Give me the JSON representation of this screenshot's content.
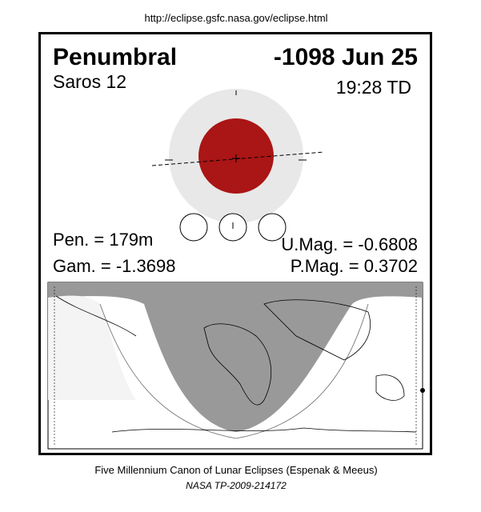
{
  "header": {
    "url": "http://eclipse.gsfc.nasa.gov/eclipse.html"
  },
  "eclipse": {
    "type": "Penumbral",
    "date": "-1098 Jun 25",
    "saros": "Saros  12",
    "time": "19:28 TD",
    "pen": "Pen. = 179m",
    "gam": "Gam. = -1.3698",
    "umag": "U.Mag. = -0.6808",
    "pmag": "P.Mag. = 0.3702"
  },
  "footer": {
    "line1": "Five Millennium Canon of Lunar Eclipses (Espenak & Meeus)",
    "line2": "NASA TP-2009-214172"
  }
}
